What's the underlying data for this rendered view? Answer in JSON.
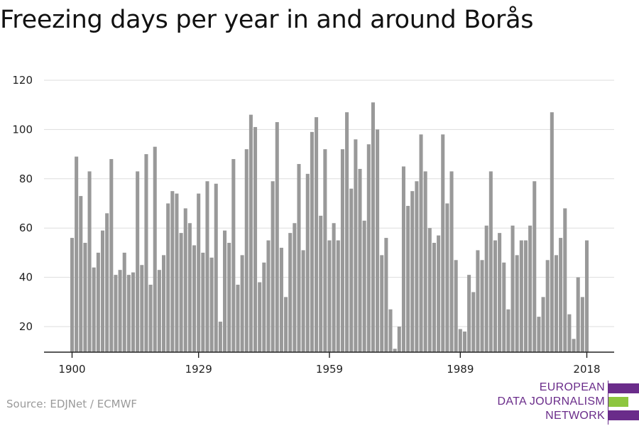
{
  "title": "Freezing days per year in and around Borås",
  "source": "Source: EDJNet / ECMWF",
  "logo": {
    "lines": [
      "EUROPEAN",
      "DATA JOURNALISM",
      "NETWORK"
    ],
    "colors": [
      "#6a2c8a",
      "#8dc63f",
      "#6a2c8a"
    ]
  },
  "chart_data": {
    "type": "bar",
    "bar_color": "#999999",
    "x_ticks": [
      "1900",
      "1929",
      "1959",
      "1989",
      "2018"
    ],
    "y_ticks": [
      "20",
      "40",
      "60",
      "80",
      "100",
      "120"
    ],
    "ylim": [
      10,
      120
    ],
    "grid": true,
    "xlabel": "",
    "ylabel": "",
    "x": [
      1900,
      1901,
      1902,
      1903,
      1904,
      1905,
      1906,
      1907,
      1908,
      1909,
      1910,
      1911,
      1912,
      1913,
      1914,
      1915,
      1916,
      1917,
      1918,
      1919,
      1920,
      1921,
      1922,
      1923,
      1924,
      1925,
      1926,
      1927,
      1928,
      1929,
      1930,
      1931,
      1932,
      1933,
      1934,
      1935,
      1936,
      1937,
      1938,
      1939,
      1940,
      1941,
      1942,
      1943,
      1944,
      1945,
      1946,
      1947,
      1948,
      1949,
      1950,
      1951,
      1952,
      1953,
      1954,
      1955,
      1956,
      1957,
      1958,
      1959,
      1960,
      1961,
      1962,
      1963,
      1964,
      1965,
      1966,
      1967,
      1968,
      1969,
      1970,
      1971,
      1972,
      1973,
      1974,
      1975,
      1976,
      1977,
      1978,
      1979,
      1980,
      1981,
      1982,
      1983,
      1984,
      1985,
      1986,
      1987,
      1988,
      1989,
      1990,
      1991,
      1992,
      1993,
      1994,
      1995,
      1996,
      1997,
      1998,
      1999,
      2000,
      2001,
      2002,
      2003,
      2004,
      2005,
      2006,
      2007,
      2008,
      2009,
      2010,
      2011,
      2012,
      2013,
      2014,
      2015,
      2016,
      2017,
      2018
    ],
    "values": [
      56,
      89,
      73,
      54,
      83,
      44,
      50,
      59,
      66,
      88,
      41,
      43,
      50,
      41,
      42,
      83,
      45,
      90,
      37,
      93,
      43,
      49,
      70,
      75,
      74,
      58,
      68,
      62,
      53,
      74,
      50,
      79,
      48,
      78,
      22,
      59,
      54,
      88,
      37,
      49,
      92,
      106,
      101,
      38,
      46,
      55,
      79,
      103,
      52,
      32,
      58,
      62,
      86,
      51,
      82,
      99,
      105,
      65,
      92,
      55,
      62,
      55,
      92,
      107,
      76,
      96,
      84,
      63,
      94,
      111,
      100,
      49,
      56,
      27,
      11,
      20,
      85,
      69,
      75,
      79,
      98,
      83,
      60,
      54,
      57,
      98,
      70,
      83,
      47,
      19,
      18,
      41,
      34,
      51,
      47,
      61,
      83,
      55,
      58,
      46,
      27,
      61,
      49,
      55,
      55,
      61,
      79,
      24,
      32,
      47,
      107,
      49,
      56,
      68,
      25,
      15,
      40,
      32,
      55
    ]
  }
}
